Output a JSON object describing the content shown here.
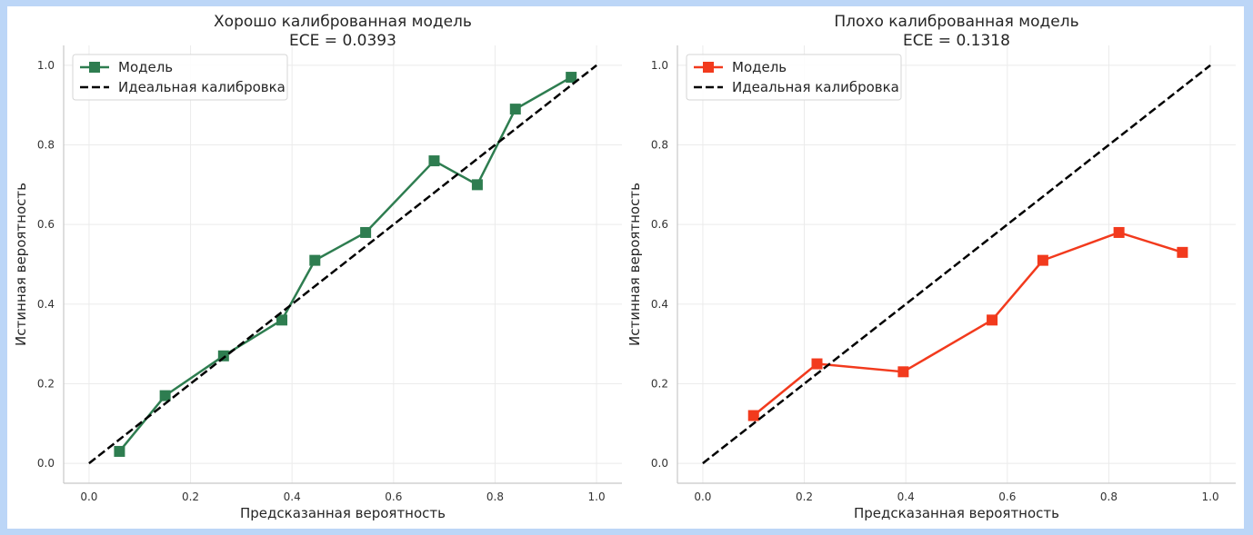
{
  "chart_data": [
    {
      "type": "line",
      "title": "Хорошо калиброванная модель",
      "subtitle": "ECE = 0.0393",
      "xlabel": "Предсказанная вероятность",
      "ylabel": "Истинная вероятность",
      "xlim": [
        -0.05,
        1.05
      ],
      "ylim": [
        -0.05,
        1.05
      ],
      "xticks": [
        "0.0",
        "0.2",
        "0.4",
        "0.6",
        "0.8",
        "1.0"
      ],
      "yticks": [
        "0.0",
        "0.2",
        "0.4",
        "0.6",
        "0.8",
        "1.0"
      ],
      "grid": true,
      "legend_position": "top-left",
      "series": [
        {
          "name": "Модель",
          "color": "#2e7d50",
          "marker": "square",
          "x": [
            0.06,
            0.15,
            0.265,
            0.38,
            0.445,
            0.545,
            0.68,
            0.765,
            0.84,
            0.95
          ],
          "y": [
            0.03,
            0.17,
            0.27,
            0.36,
            0.51,
            0.58,
            0.76,
            0.7,
            0.89,
            0.97
          ]
        },
        {
          "name": "Идеальная калибровка",
          "color": "#000000",
          "style": "dashed",
          "x": [
            0.0,
            1.0
          ],
          "y": [
            0.0,
            1.0
          ]
        }
      ]
    },
    {
      "type": "line",
      "title": "Плохо калиброванная модель",
      "subtitle": "ECE = 0.1318",
      "xlabel": "Предсказанная вероятность",
      "ylabel": "Истинная вероятность",
      "xlim": [
        -0.05,
        1.05
      ],
      "ylim": [
        -0.05,
        1.05
      ],
      "xticks": [
        "0.0",
        "0.2",
        "0.4",
        "0.6",
        "0.8",
        "1.0"
      ],
      "yticks": [
        "0.0",
        "0.2",
        "0.4",
        "0.6",
        "0.8",
        "1.0"
      ],
      "grid": true,
      "legend_position": "top-left",
      "series": [
        {
          "name": "Модель",
          "color": "#f23a1d",
          "marker": "square",
          "x": [
            0.1,
            0.225,
            0.395,
            0.57,
            0.67,
            0.82,
            0.945
          ],
          "y": [
            0.12,
            0.25,
            0.23,
            0.36,
            0.51,
            0.58,
            0.53
          ]
        },
        {
          "name": "Идеальная калибровка",
          "color": "#000000",
          "style": "dashed",
          "x": [
            0.0,
            1.0
          ],
          "y": [
            0.0,
            1.0
          ]
        }
      ]
    }
  ]
}
